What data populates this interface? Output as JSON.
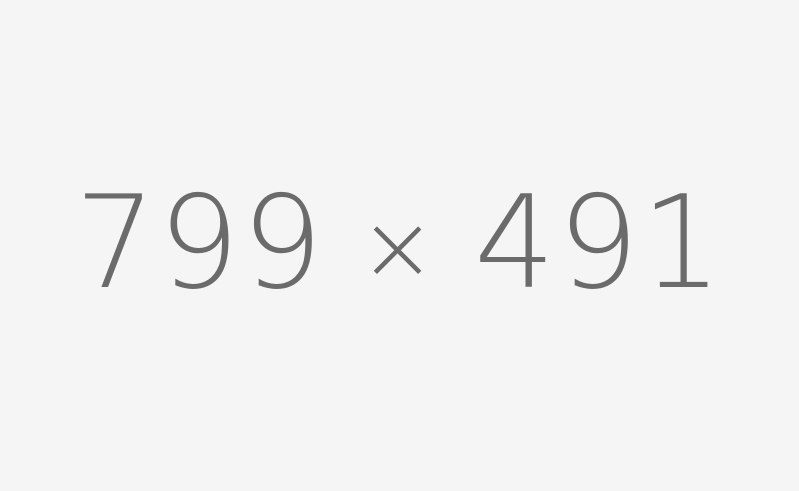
{
  "placeholder": {
    "width_text": "799",
    "separator": "×",
    "height_text": "491",
    "colors": {
      "background": "#f5f5f5",
      "text": "#6b6b6b"
    }
  }
}
